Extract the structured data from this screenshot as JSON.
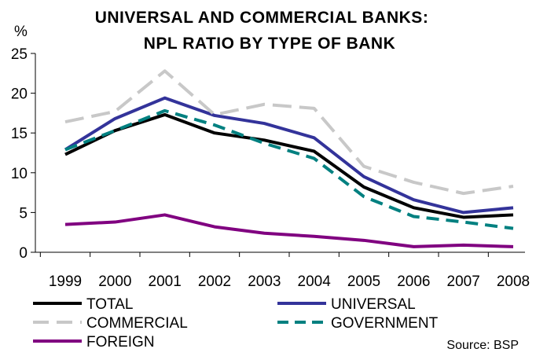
{
  "chart_data": {
    "type": "line",
    "title_line1": "UNIVERSAL AND COMMERCIAL BANKS:",
    "title_line2": "NPL RATIO BY TYPE OF BANK",
    "ylabel": "%",
    "ylim": [
      0,
      25
    ],
    "yticks": [
      "0",
      "5",
      "10",
      "15",
      "20",
      "25"
    ],
    "categories": [
      "1999",
      "2000",
      "2001",
      "2002",
      "2003",
      "2004",
      "2005",
      "2006",
      "2007",
      "2008"
    ],
    "grid": false,
    "legend_position": "bottom",
    "source": "Source: BSP",
    "series": [
      {
        "name": "TOTAL",
        "color": "#000000",
        "dash": "solid",
        "values": [
          12.3,
          15.3,
          17.3,
          15.0,
          14.1,
          12.7,
          8.2,
          5.6,
          4.4,
          4.7
        ]
      },
      {
        "name": "UNIVERSAL",
        "color": "#33339a",
        "dash": "solid",
        "values": [
          12.9,
          16.8,
          19.4,
          17.2,
          16.2,
          14.4,
          9.5,
          6.6,
          5.0,
          5.6
        ]
      },
      {
        "name": "COMMERCIAL",
        "color": "#c8c8c8",
        "dash": "long",
        "values": [
          16.4,
          17.7,
          22.8,
          17.3,
          18.6,
          18.1,
          10.8,
          8.8,
          7.4,
          8.3
        ]
      },
      {
        "name": "GOVERNMENT",
        "color": "#008080",
        "dash": "medium",
        "values": [
          12.9,
          15.3,
          17.8,
          16.0,
          13.7,
          11.8,
          7.0,
          4.5,
          3.8,
          3.0
        ]
      },
      {
        "name": "FOREIGN",
        "color": "#800080",
        "dash": "solid",
        "values": [
          3.5,
          3.8,
          4.7,
          3.2,
          2.4,
          2.0,
          1.5,
          0.7,
          0.9,
          0.7
        ]
      }
    ]
  }
}
